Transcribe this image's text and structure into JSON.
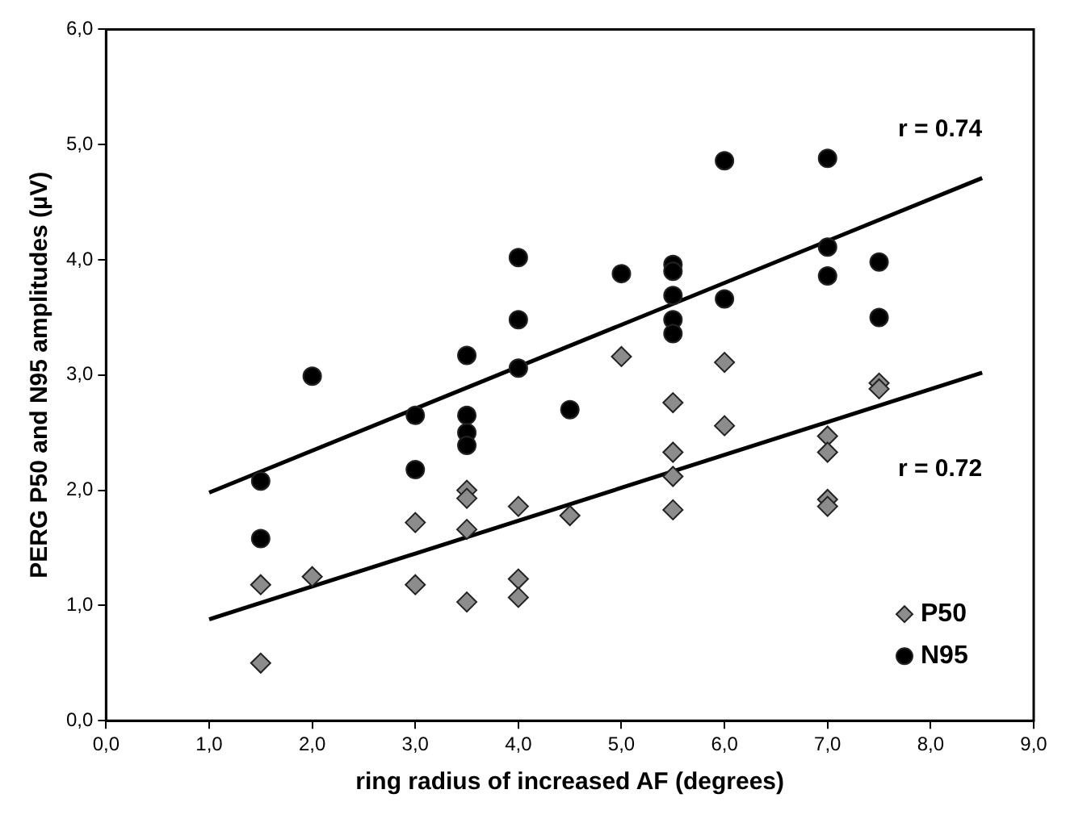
{
  "chart_data": {
    "type": "scatter",
    "xlabel": "ring radius of increased AF (degrees)",
    "ylabel": "PERG P50 and N95 amplitudes (µV)",
    "xlim": [
      0,
      9
    ],
    "xticks": [
      {
        "value": 0,
        "label": "0,0"
      },
      {
        "value": 1,
        "label": "1,0"
      },
      {
        "value": 2,
        "label": "2,0"
      },
      {
        "value": 3,
        "label": "3,0"
      },
      {
        "value": 4,
        "label": "4,0"
      },
      {
        "value": 5,
        "label": "5,0"
      },
      {
        "value": 6,
        "label": "6,0"
      },
      {
        "value": 7,
        "label": "7,0"
      },
      {
        "value": 8,
        "label": "8,0"
      },
      {
        "value": 9,
        "label": "9,0"
      }
    ],
    "ylim": [
      0,
      6
    ],
    "yticks": [
      {
        "value": 0,
        "label": "0,0"
      },
      {
        "value": 1,
        "label": "1,0"
      },
      {
        "value": 2,
        "label": "2,0"
      },
      {
        "value": 3,
        "label": "3,0"
      },
      {
        "value": 4,
        "label": "4,0"
      },
      {
        "value": 5,
        "label": "5,0"
      },
      {
        "value": 6,
        "label": "6,0"
      }
    ],
    "grid": false,
    "legend": "bottom right",
    "series": [
      {
        "name": "P50",
        "marker": "diamond",
        "color": "#8c8c8c",
        "x": [
          1.5,
          1.5,
          2.0,
          3.0,
          3.0,
          3.5,
          3.5,
          3.5,
          3.5,
          4.0,
          4.0,
          4.0,
          4.5,
          5.0,
          5.5,
          5.5,
          5.5,
          5.5,
          6.0,
          6.0,
          7.0,
          7.0,
          7.0,
          7.0,
          7.5,
          7.5
        ],
        "values": [
          1.18,
          0.5,
          1.25,
          1.72,
          1.18,
          2.0,
          1.93,
          1.66,
          1.03,
          1.86,
          1.23,
          1.07,
          1.78,
          3.16,
          2.76,
          2.33,
          2.12,
          1.83,
          3.11,
          2.56,
          2.47,
          2.33,
          1.92,
          1.86,
          2.93,
          2.88
        ]
      },
      {
        "name": "N95",
        "marker": "circle",
        "color": "#000000",
        "x": [
          1.5,
          1.5,
          2.0,
          3.0,
          3.0,
          3.5,
          3.5,
          3.5,
          3.5,
          4.0,
          4.0,
          4.0,
          4.5,
          5.0,
          5.5,
          5.5,
          5.5,
          5.5,
          5.5,
          6.0,
          6.0,
          7.0,
          7.0,
          7.0,
          7.5,
          7.5
        ],
        "values": [
          2.08,
          1.58,
          2.99,
          2.65,
          2.18,
          3.17,
          2.65,
          2.5,
          2.39,
          4.02,
          3.48,
          3.06,
          2.7,
          3.88,
          3.96,
          3.9,
          3.69,
          3.48,
          3.36,
          4.86,
          3.66,
          4.88,
          4.11,
          3.86,
          3.98,
          3.5
        ]
      },
      {
        "type": "line",
        "marker": "none",
        "color": "#000000",
        "x": [
          1,
          8.5
        ],
        "values": [
          1.98,
          4.71
        ]
      },
      {
        "type": "line",
        "marker": "none",
        "color": "#000000",
        "x": [
          1,
          8.5
        ],
        "values": [
          0.88,
          3.02
        ]
      }
    ],
    "annotations": [
      "r = 0.74",
      "r = 0.72"
    ]
  }
}
